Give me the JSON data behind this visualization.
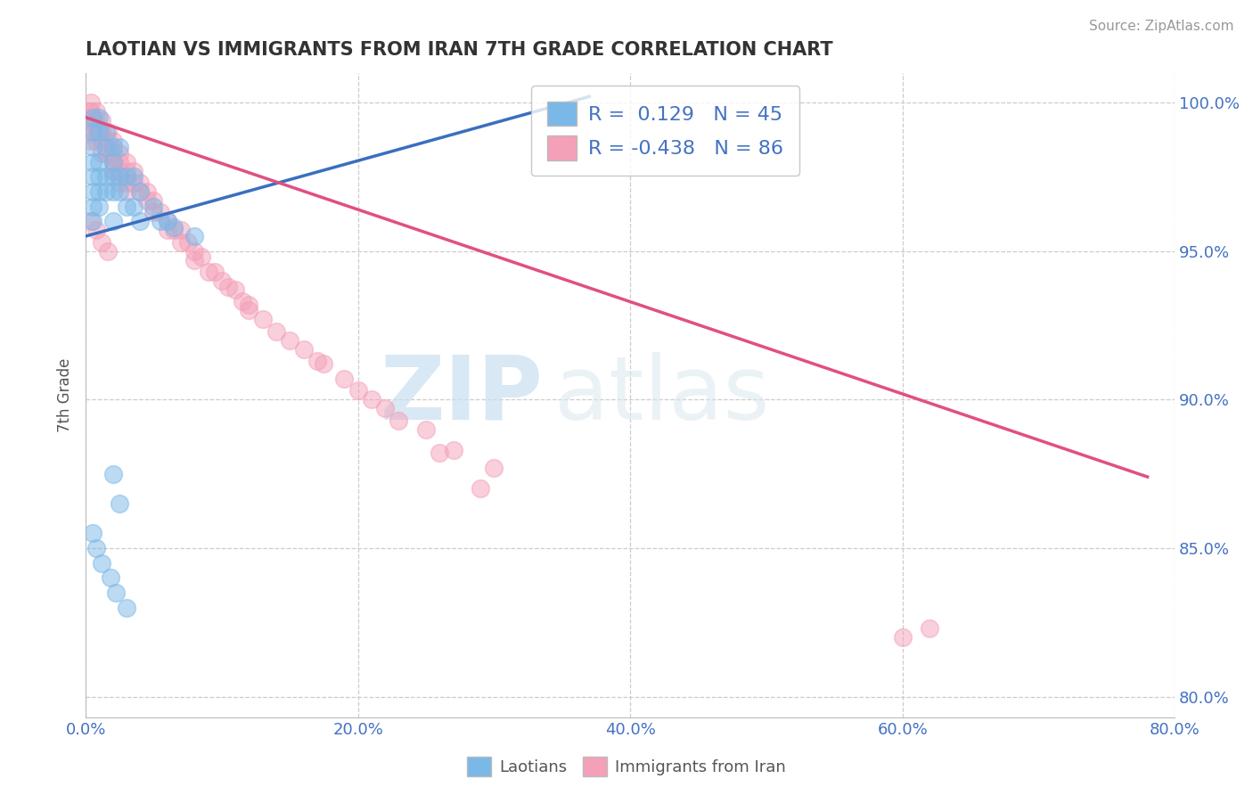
{
  "title": "LAOTIAN VS IMMIGRANTS FROM IRAN 7TH GRADE CORRELATION CHART",
  "source": "Source: ZipAtlas.com",
  "xlabel_ticks": [
    "0.0%",
    "20.0%",
    "40.0%",
    "60.0%",
    "80.0%"
  ],
  "ylabel_ticks": [
    "80.0%",
    "85.0%",
    "90.0%",
    "95.0%",
    "100.0%"
  ],
  "xlim": [
    0.0,
    0.8
  ],
  "ylim": [
    0.793,
    1.01
  ],
  "ylabel": "7th Grade",
  "legend_blue_label": "Laotians",
  "legend_pink_label": "Immigrants from Iran",
  "r_blue": "0.129",
  "n_blue": "45",
  "r_pink": "-0.438",
  "n_pink": "86",
  "blue_color": "#7ab8e8",
  "pink_color": "#f4a0b8",
  "blue_line_color": "#3a6fbf",
  "pink_line_color": "#e05080",
  "watermark_zip": "ZIP",
  "watermark_atlas": "atlas",
  "blue_line_x": [
    0.0,
    0.37
  ],
  "blue_line_y": [
    0.955,
    1.002
  ],
  "pink_line_x": [
    0.0,
    0.78
  ],
  "pink_line_y": [
    0.995,
    0.874
  ],
  "blue_scatter_x": [
    0.005,
    0.005,
    0.005,
    0.005,
    0.005,
    0.005,
    0.005,
    0.005,
    0.01,
    0.01,
    0.01,
    0.01,
    0.01,
    0.01,
    0.015,
    0.015,
    0.015,
    0.015,
    0.02,
    0.02,
    0.02,
    0.02,
    0.02,
    0.025,
    0.025,
    0.025,
    0.03,
    0.03,
    0.035,
    0.035,
    0.04,
    0.04,
    0.05,
    0.055,
    0.06,
    0.065,
    0.08,
    0.02,
    0.025,
    0.005,
    0.008,
    0.012,
    0.018,
    0.022,
    0.03
  ],
  "blue_scatter_y": [
    0.995,
    0.99,
    0.985,
    0.98,
    0.975,
    0.97,
    0.965,
    0.96,
    0.995,
    0.99,
    0.98,
    0.975,
    0.97,
    0.965,
    0.99,
    0.985,
    0.975,
    0.97,
    0.985,
    0.98,
    0.975,
    0.97,
    0.96,
    0.985,
    0.975,
    0.97,
    0.975,
    0.965,
    0.975,
    0.965,
    0.97,
    0.96,
    0.965,
    0.96,
    0.96,
    0.958,
    0.955,
    0.875,
    0.865,
    0.855,
    0.85,
    0.845,
    0.84,
    0.835,
    0.83
  ],
  "pink_scatter_x": [
    0.004,
    0.004,
    0.004,
    0.004,
    0.004,
    0.008,
    0.008,
    0.008,
    0.008,
    0.012,
    0.012,
    0.012,
    0.012,
    0.016,
    0.016,
    0.016,
    0.02,
    0.02,
    0.02,
    0.02,
    0.025,
    0.025,
    0.025,
    0.03,
    0.03,
    0.03,
    0.035,
    0.035,
    0.04,
    0.04,
    0.045,
    0.045,
    0.05,
    0.05,
    0.06,
    0.06,
    0.07,
    0.07,
    0.08,
    0.08,
    0.09,
    0.1,
    0.11,
    0.115,
    0.12,
    0.13,
    0.14,
    0.16,
    0.17,
    0.19,
    0.2,
    0.22,
    0.25,
    0.27,
    0.3,
    0.006,
    0.01,
    0.014,
    0.018,
    0.003,
    0.006,
    0.009,
    0.012,
    0.015,
    0.02,
    0.025,
    0.03,
    0.6,
    0.62,
    0.004,
    0.008,
    0.012,
    0.016,
    0.055,
    0.065,
    0.075,
    0.085,
    0.095,
    0.105,
    0.12,
    0.15,
    0.175,
    0.21,
    0.23,
    0.26,
    0.29
  ],
  "pink_scatter_y": [
    1.0,
    0.997,
    0.994,
    0.99,
    0.987,
    0.997,
    0.994,
    0.99,
    0.987,
    0.994,
    0.99,
    0.987,
    0.983,
    0.99,
    0.987,
    0.983,
    0.987,
    0.983,
    0.98,
    0.977,
    0.983,
    0.98,
    0.977,
    0.98,
    0.977,
    0.973,
    0.977,
    0.973,
    0.973,
    0.97,
    0.97,
    0.967,
    0.967,
    0.963,
    0.96,
    0.957,
    0.957,
    0.953,
    0.95,
    0.947,
    0.943,
    0.94,
    0.937,
    0.933,
    0.93,
    0.927,
    0.923,
    0.917,
    0.913,
    0.907,
    0.903,
    0.897,
    0.89,
    0.883,
    0.877,
    0.993,
    0.99,
    0.987,
    0.983,
    0.997,
    0.994,
    0.99,
    0.987,
    0.983,
    0.977,
    0.973,
    0.97,
    0.82,
    0.823,
    0.96,
    0.957,
    0.953,
    0.95,
    0.963,
    0.957,
    0.953,
    0.948,
    0.943,
    0.938,
    0.932,
    0.92,
    0.912,
    0.9,
    0.893,
    0.882,
    0.87
  ]
}
